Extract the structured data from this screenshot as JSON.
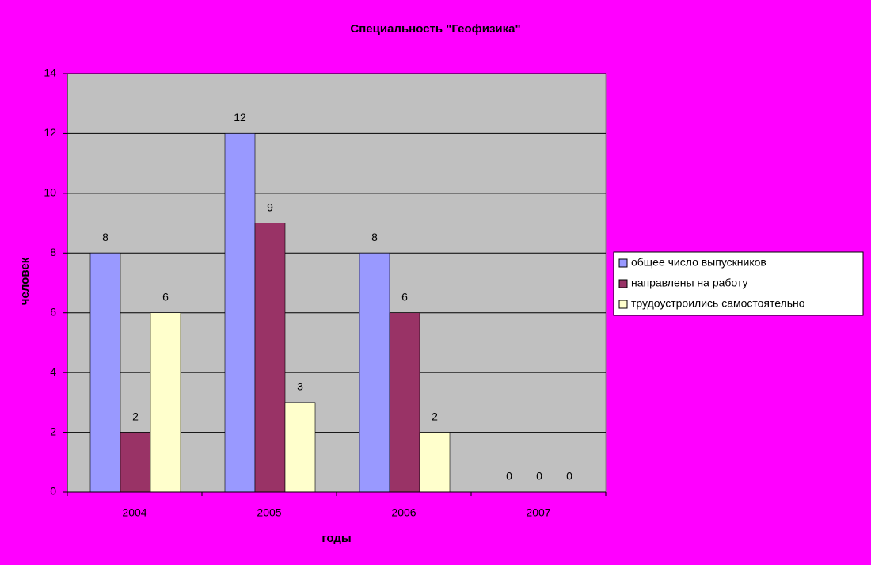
{
  "chart_data": {
    "type": "bar",
    "title": "Специальность \"Геофизика\"",
    "x_label": "годы",
    "y_label": "человек",
    "categories": [
      "2004",
      "2005",
      "2006",
      "2007"
    ],
    "series": [
      {
        "name": "общее число выпускников",
        "color": "#9999ff",
        "values": [
          8,
          12,
          8,
          0
        ]
      },
      {
        "name": "направлены на работу",
        "color": "#993366",
        "values": [
          2,
          9,
          6,
          0
        ]
      },
      {
        "name": "трудоустроились самостоятельно",
        "color": "#ffffcc",
        "values": [
          6,
          3,
          2,
          0
        ]
      }
    ],
    "ylim": [
      0,
      14
    ],
    "yticks": [
      0,
      2,
      4,
      6,
      8,
      10,
      12,
      14
    ],
    "grid": true,
    "legend": "right",
    "background": "#ff00ff",
    "plot_background": "#c0c0c0"
  }
}
